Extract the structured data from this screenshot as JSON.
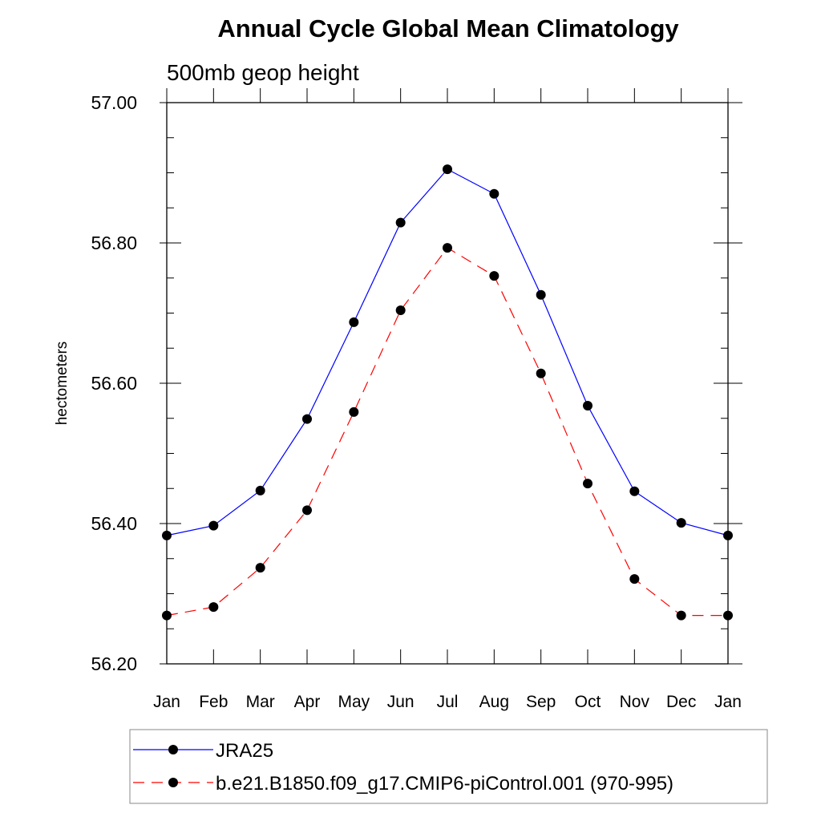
{
  "chart_data": {
    "type": "line",
    "title": "Annual Cycle Global Mean Climatology",
    "subtitle": "500mb geop height",
    "xlabel": "",
    "ylabel": "hectometers",
    "categories": [
      "Jan",
      "Feb",
      "Mar",
      "Apr",
      "May",
      "Jun",
      "Jul",
      "Aug",
      "Sep",
      "Oct",
      "Nov",
      "Dec",
      "Jan"
    ],
    "ylim": [
      56.2,
      57.0
    ],
    "yticks": [
      "56.20",
      "56.40",
      "56.60",
      "56.80",
      "57.00"
    ],
    "legend_position": "bottom",
    "series": [
      {
        "name": "JRA25",
        "color": "#0000ff",
        "line_style": "solid",
        "marker": "filled-circle",
        "values": [
          56.383,
          56.397,
          56.447,
          56.549,
          56.687,
          56.829,
          56.905,
          56.87,
          56.726,
          56.568,
          56.446,
          56.401,
          56.383
        ]
      },
      {
        "name": "b.e21.B1850.f09_g17.CMIP6-piControl.001 (970-995)",
        "color": "#ff0000",
        "line_style": "dashed",
        "marker": "filled-circle",
        "values": [
          56.269,
          56.281,
          56.337,
          56.419,
          56.559,
          56.704,
          56.793,
          56.753,
          56.614,
          56.457,
          56.321,
          56.269,
          56.269
        ]
      }
    ]
  }
}
